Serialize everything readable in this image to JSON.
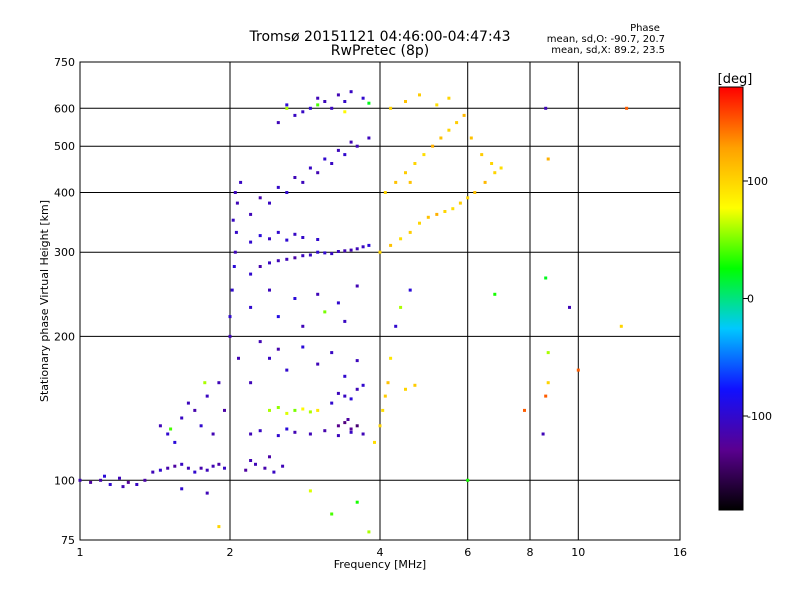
{
  "chart_data": {
    "type": "scatter",
    "title": "Tromsø 20151121 04:46:00-04:47:43",
    "subtitle": "RwPretec (8p)",
    "xlabel": "Frequency [MHz]",
    "ylabel": "Stationary phase Virtual Height [km]",
    "x_scale": "log",
    "y_scale": "log",
    "xlim": [
      1,
      16
    ],
    "ylim": [
      75,
      750
    ],
    "x_ticks": [
      1,
      2,
      4,
      6,
      8,
      10,
      16
    ],
    "x_tick_labels": [
      "1",
      "2",
      "4",
      "6",
      "8",
      "10",
      "16"
    ],
    "y_ticks": [
      75,
      100,
      200,
      300,
      400,
      500,
      600,
      750
    ],
    "y_tick_labels": [
      "75",
      "100",
      "200",
      "300",
      "400",
      "500",
      "600",
      "750"
    ],
    "grid": true,
    "colorbar": {
      "label": "[deg]",
      "min": -180,
      "max": 180,
      "ticks": [
        100,
        0,
        -100
      ],
      "tick_labels": [
        "100",
        "0",
        "-100"
      ],
      "colors": [
        "#000000",
        "#5a0090",
        "#1010ff",
        "#00c8ff",
        "#00ff00",
        "#ffff00",
        "#ffa000",
        "#ff0000"
      ]
    },
    "stats": {
      "heading": "Phase",
      "line_o": "mean, sd,O: -90.7, 20.7",
      "line_x": "mean, sd,X:  89.2, 23.5"
    },
    "series": [
      {
        "points": [
          [
            1.0,
            100,
            -110
          ],
          [
            1.05,
            99,
            -120
          ],
          [
            1.1,
            100,
            -115
          ],
          [
            1.15,
            98,
            -100
          ],
          [
            1.2,
            101,
            -110
          ],
          [
            1.25,
            99,
            -125
          ],
          [
            1.3,
            98,
            -105
          ],
          [
            1.35,
            100,
            -118
          ],
          [
            1.12,
            102,
            -95
          ],
          [
            1.22,
            97,
            -112
          ],
          [
            1.4,
            104,
            -110
          ],
          [
            1.45,
            105,
            -100
          ],
          [
            1.5,
            106,
            -115
          ],
          [
            1.55,
            107,
            -120
          ],
          [
            1.6,
            108,
            -105
          ],
          [
            1.65,
            106,
            -110
          ],
          [
            1.7,
            104,
            -100
          ],
          [
            1.75,
            106,
            -115
          ],
          [
            1.8,
            105,
            -108
          ],
          [
            1.85,
            107,
            -112
          ],
          [
            1.9,
            108,
            -118
          ],
          [
            1.95,
            106,
            -105
          ],
          [
            1.5,
            125,
            -100
          ],
          [
            1.45,
            130,
            -110
          ],
          [
            1.55,
            120,
            -95
          ],
          [
            1.6,
            135,
            -105
          ],
          [
            1.52,
            128,
            40
          ],
          [
            1.7,
            140,
            -115
          ],
          [
            1.65,
            145,
            -108
          ],
          [
            1.75,
            130,
            -100
          ],
          [
            1.85,
            125,
            -112
          ],
          [
            1.8,
            150,
            -106
          ],
          [
            1.95,
            140,
            -118
          ],
          [
            1.9,
            160,
            -110
          ],
          [
            1.78,
            160,
            60
          ],
          [
            2.0,
            200,
            -110
          ],
          [
            2.02,
            250,
            -100
          ],
          [
            2.05,
            300,
            -110
          ],
          [
            2.03,
            350,
            -105
          ],
          [
            2.05,
            400,
            -108
          ],
          [
            2.08,
            180,
            -112
          ],
          [
            2.0,
            220,
            -100
          ],
          [
            2.04,
            280,
            -95
          ],
          [
            2.06,
            330,
            -102
          ],
          [
            2.07,
            380,
            -110
          ],
          [
            2.1,
            420,
            -105
          ],
          [
            2.15,
            105,
            -120
          ],
          [
            2.25,
            108,
            -110
          ],
          [
            2.35,
            106,
            -115
          ],
          [
            2.45,
            104,
            -105
          ],
          [
            2.55,
            107,
            -110
          ],
          [
            2.2,
            110,
            -112
          ],
          [
            2.4,
            112,
            -118
          ],
          [
            2.2,
            125,
            -110
          ],
          [
            2.3,
            127,
            -105
          ],
          [
            2.5,
            124,
            -100
          ],
          [
            2.7,
            126,
            -112
          ],
          [
            2.9,
            125,
            -110
          ],
          [
            3.1,
            127,
            -115
          ],
          [
            3.3,
            124,
            -108
          ],
          [
            3.5,
            126,
            -105
          ],
          [
            3.7,
            125,
            -110
          ],
          [
            2.6,
            128,
            -95
          ],
          [
            2.4,
            140,
            60
          ],
          [
            2.5,
            142,
            55
          ],
          [
            2.6,
            138,
            70
          ],
          [
            2.7,
            140,
            50
          ],
          [
            2.8,
            141,
            80
          ],
          [
            2.9,
            139,
            60
          ],
          [
            3.0,
            140,
            90
          ],
          [
            3.2,
            145,
            -100
          ],
          [
            3.4,
            150,
            -105
          ],
          [
            3.6,
            155,
            -110
          ],
          [
            3.5,
            148,
            -95
          ],
          [
            3.3,
            152,
            -108
          ],
          [
            3.7,
            158,
            -100
          ],
          [
            3.3,
            130,
            -130
          ],
          [
            3.4,
            132,
            -135
          ],
          [
            3.5,
            128,
            -125
          ],
          [
            3.6,
            130,
            -140
          ],
          [
            3.45,
            134,
            -120
          ],
          [
            2.2,
            160,
            -110
          ],
          [
            2.4,
            180,
            -105
          ],
          [
            2.6,
            170,
            -100
          ],
          [
            2.8,
            190,
            -95
          ],
          [
            3.0,
            175,
            -110
          ],
          [
            3.2,
            185,
            -105
          ],
          [
            3.4,
            165,
            -100
          ],
          [
            3.6,
            178,
            -108
          ],
          [
            2.3,
            195,
            -112
          ],
          [
            2.5,
            188,
            -115
          ],
          [
            2.2,
            230,
            -100
          ],
          [
            2.5,
            220,
            -90
          ],
          [
            2.8,
            210,
            -110
          ],
          [
            3.1,
            225,
            50
          ],
          [
            3.4,
            215,
            -105
          ],
          [
            2.4,
            250,
            -108
          ],
          [
            2.7,
            240,
            -95
          ],
          [
            3.0,
            245,
            -110
          ],
          [
            3.3,
            235,
            -100
          ],
          [
            3.6,
            255,
            -112
          ],
          [
            2.2,
            270,
            -100
          ],
          [
            2.4,
            285,
            -105
          ],
          [
            2.6,
            290,
            -110
          ],
          [
            2.8,
            295,
            -108
          ],
          [
            3.0,
            300,
            -100
          ],
          [
            3.2,
            298,
            -105
          ],
          [
            3.4,
            302,
            -112
          ],
          [
            3.6,
            305,
            -110
          ],
          [
            3.8,
            310,
            -95
          ],
          [
            2.3,
            280,
            -115
          ],
          [
            2.5,
            288,
            -110
          ],
          [
            2.7,
            292,
            -118
          ],
          [
            2.9,
            296,
            -105
          ],
          [
            3.1,
            299,
            -100
          ],
          [
            3.3,
            301,
            -108
          ],
          [
            3.5,
            303,
            -112
          ],
          [
            3.7,
            308,
            -106
          ],
          [
            2.2,
            315,
            -100
          ],
          [
            2.4,
            320,
            -105
          ],
          [
            2.6,
            318,
            -98
          ],
          [
            2.8,
            322,
            -102
          ],
          [
            3.0,
            319,
            -100
          ],
          [
            2.3,
            325,
            -95
          ],
          [
            2.5,
            330,
            -100
          ],
          [
            2.7,
            327,
            -104
          ],
          [
            2.2,
            360,
            -110
          ],
          [
            2.4,
            380,
            -105
          ],
          [
            2.6,
            400,
            -100
          ],
          [
            2.8,
            420,
            -108
          ],
          [
            3.0,
            440,
            -112
          ],
          [
            3.2,
            460,
            -105
          ],
          [
            3.4,
            480,
            -100
          ],
          [
            3.6,
            500,
            -110
          ],
          [
            3.8,
            520,
            -108
          ],
          [
            2.3,
            390,
            -115
          ],
          [
            2.5,
            410,
            -102
          ],
          [
            2.7,
            430,
            -110
          ],
          [
            2.9,
            450,
            -105
          ],
          [
            3.1,
            470,
            -100
          ],
          [
            3.3,
            490,
            -108
          ],
          [
            3.5,
            510,
            -112
          ],
          [
            2.5,
            560,
            -110
          ],
          [
            2.7,
            580,
            -105
          ],
          [
            2.9,
            600,
            -100
          ],
          [
            3.1,
            620,
            -108
          ],
          [
            3.3,
            640,
            -112
          ],
          [
            3.5,
            650,
            -105
          ],
          [
            3.7,
            630,
            -100
          ],
          [
            2.6,
            610,
            -98
          ],
          [
            2.8,
            590,
            -104
          ],
          [
            3.0,
            630,
            -110
          ],
          [
            3.2,
            600,
            -106
          ],
          [
            3.4,
            620,
            -102
          ],
          [
            2.6,
            600,
            60
          ],
          [
            3.0,
            610,
            40
          ],
          [
            3.4,
            590,
            80
          ],
          [
            3.8,
            615,
            20
          ],
          [
            4.0,
            300,
            100
          ],
          [
            4.2,
            310,
            110
          ],
          [
            4.4,
            320,
            95
          ],
          [
            4.6,
            330,
            105
          ],
          [
            4.8,
            345,
            100
          ],
          [
            5.0,
            355,
            110
          ],
          [
            5.2,
            360,
            120
          ],
          [
            5.4,
            365,
            100
          ],
          [
            5.6,
            370,
            95
          ],
          [
            5.8,
            380,
            105
          ],
          [
            6.0,
            390,
            100
          ],
          [
            6.2,
            400,
            110
          ],
          [
            6.5,
            420,
            115
          ],
          [
            6.8,
            440,
            100
          ],
          [
            7.0,
            450,
            95
          ],
          [
            4.1,
            400,
            100
          ],
          [
            4.3,
            420,
            110
          ],
          [
            4.5,
            440,
            105
          ],
          [
            4.7,
            460,
            100
          ],
          [
            4.9,
            480,
            95
          ],
          [
            5.1,
            500,
            120
          ],
          [
            5.3,
            520,
            110
          ],
          [
            5.5,
            540,
            100
          ],
          [
            5.7,
            560,
            105
          ],
          [
            5.9,
            580,
            115
          ],
          [
            4.2,
            600,
            100
          ],
          [
            4.5,
            620,
            110
          ],
          [
            4.8,
            640,
            105
          ],
          [
            5.2,
            610,
            95
          ],
          [
            5.5,
            630,
            100
          ],
          [
            6.1,
            520,
            110
          ],
          [
            6.4,
            480,
            105
          ],
          [
            6.7,
            460,
            100
          ],
          [
            4.0,
            130,
            100
          ],
          [
            4.05,
            140,
            95
          ],
          [
            4.1,
            150,
            105
          ],
          [
            4.15,
            160,
            110
          ],
          [
            4.5,
            155,
            100
          ],
          [
            4.7,
            158,
            105
          ],
          [
            3.9,
            120,
            95
          ],
          [
            4.3,
            210,
            -100
          ],
          [
            4.6,
            250,
            -95
          ],
          [
            4.2,
            180,
            90
          ],
          [
            4.4,
            230,
            60
          ],
          [
            8.6,
            600,
            -110
          ],
          [
            8.7,
            470,
            120
          ],
          [
            8.6,
            265,
            20
          ],
          [
            8.7,
            185,
            60
          ],
          [
            8.6,
            150,
            150
          ],
          [
            8.5,
            125,
            -110
          ],
          [
            8.7,
            160,
            100
          ],
          [
            9.6,
            230,
            -110
          ],
          [
            10.0,
            170,
            150
          ],
          [
            12.5,
            600,
            150
          ],
          [
            12.2,
            210,
            100
          ],
          [
            6.8,
            245,
            30
          ],
          [
            7.8,
            140,
            150
          ],
          [
            4.6,
            420,
            110
          ],
          [
            2.9,
            95,
            70
          ],
          [
            3.2,
            85,
            40
          ],
          [
            3.6,
            90,
            30
          ],
          [
            1.9,
            80,
            100
          ],
          [
            3.8,
            78,
            60
          ],
          [
            6.0,
            100,
            30
          ],
          [
            1.6,
            96,
            -100
          ],
          [
            1.8,
            94,
            -110
          ]
        ]
      }
    ]
  }
}
